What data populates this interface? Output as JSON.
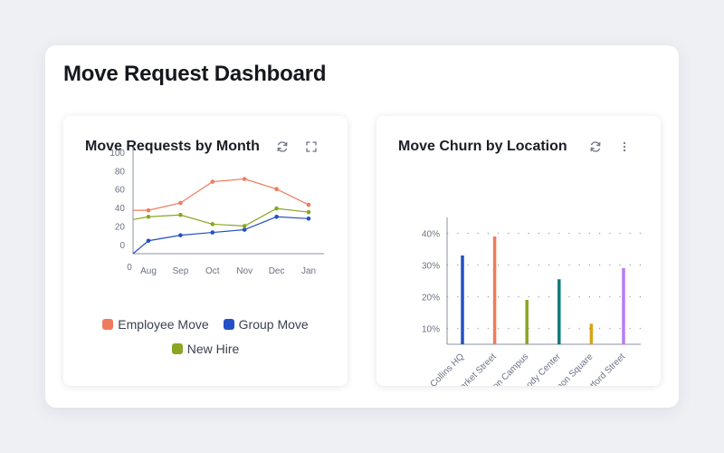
{
  "page": {
    "title": "Move Request Dashboard"
  },
  "icons": {
    "refresh": "refresh-icon",
    "expand": "expand-icon",
    "more": "more-vertical-icon"
  },
  "widgets": {
    "move_requests": {
      "title": "Move Requests by Month"
    },
    "churn": {
      "title": "Move Churn by Location"
    }
  },
  "chart_data": [
    {
      "type": "line",
      "title": "Move Requests by Month",
      "categories": [
        "Aug",
        "Sep",
        "Oct",
        "Nov",
        "Dec",
        "Jan"
      ],
      "x_origin_label": "0",
      "y_ticks": [
        "100",
        "80",
        "60",
        "40",
        "20",
        "0"
      ],
      "ylim": [
        -10,
        100
      ],
      "series": [
        {
          "name": "Employee Move",
          "color": "#ef7b5c",
          "start": 37,
          "values": [
            37,
            45,
            68,
            71,
            60,
            43
          ]
        },
        {
          "name": "Group Move",
          "color": "#2450c5",
          "start": -10,
          "values": [
            4,
            10,
            13,
            16,
            30,
            28
          ]
        },
        {
          "name": "New Hire",
          "color": "#8aa623",
          "start": 27,
          "values": [
            30,
            32,
            22,
            20,
            39,
            35
          ]
        }
      ],
      "legend": "bottom",
      "grid": false
    },
    {
      "type": "bar",
      "title": "Move Churn by Location",
      "categories": [
        "Fort Collins HQ",
        "Market Street",
        "Milton Campus",
        "Peabody Center",
        "Simon Square",
        "Westford Street"
      ],
      "values": [
        33,
        39,
        19,
        25.5,
        11.5,
        29
      ],
      "colors": [
        "#2450c5",
        "#ef7b5c",
        "#8aa623",
        "#127a7a",
        "#d6a417",
        "#b57cf5"
      ],
      "y_ticks": [
        "10%",
        "20%",
        "30%",
        "40%"
      ],
      "ylim": [
        5,
        45
      ],
      "grid": true,
      "legend": "none"
    }
  ]
}
